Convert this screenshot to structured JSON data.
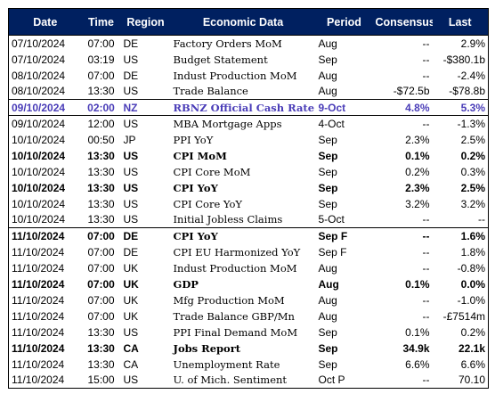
{
  "headers": {
    "date": "Date",
    "time": "Time",
    "region": "Region",
    "data": "Economic Data",
    "period": "Period",
    "consensus": "Consensus",
    "last": "Last"
  },
  "rows": [
    {
      "date": "07/10/2024",
      "time": "07:00",
      "region": "DE",
      "data": "Factory Orders MoM",
      "period": "Aug",
      "consensus": "--",
      "last": "2.9%"
    },
    {
      "date": "07/10/2024",
      "time": "03:19",
      "region": "US",
      "data": "Budget Statement",
      "period": "Sep",
      "consensus": "--",
      "last": "-$380.1b"
    },
    {
      "date": "08/10/2024",
      "time": "07:00",
      "region": "DE",
      "data": "Indust Production MoM",
      "period": "Aug",
      "consensus": "--",
      "last": "-2.4%"
    },
    {
      "date": "08/10/2024",
      "time": "13:30",
      "region": "US",
      "data": "Trade Balance",
      "period": "Aug",
      "consensus": "-$72.5b",
      "last": "-$78.8b"
    },
    {
      "date": "09/10/2024",
      "time": "02:00",
      "region": "NZ",
      "data": "RBNZ Official Cash Rate",
      "period": "9-Oct",
      "consensus": "4.8%",
      "last": "5.3%"
    },
    {
      "date": "09/10/2024",
      "time": "12:00",
      "region": "US",
      "data": "MBA Mortgage Apps",
      "period": "4-Oct",
      "consensus": "--",
      "last": "-1.3%"
    },
    {
      "date": "10/10/2024",
      "time": "00:50",
      "region": "JP",
      "data": "PPI YoY",
      "period": "Sep",
      "consensus": "2.3%",
      "last": "2.5%"
    },
    {
      "date": "10/10/2024",
      "time": "13:30",
      "region": "US",
      "data": "CPI MoM",
      "period": "Sep",
      "consensus": "0.1%",
      "last": "0.2%"
    },
    {
      "date": "10/10/2024",
      "time": "13:30",
      "region": "US",
      "data": "CPI Core MoM",
      "period": "Sep",
      "consensus": "0.2%",
      "last": "0.3%"
    },
    {
      "date": "10/10/2024",
      "time": "13:30",
      "region": "US",
      "data": "CPI YoY",
      "period": "Sep",
      "consensus": "2.3%",
      "last": "2.5%"
    },
    {
      "date": "10/10/2024",
      "time": "13:30",
      "region": "US",
      "data": "CPI Core YoY",
      "period": "Sep",
      "consensus": "3.2%",
      "last": "3.2%"
    },
    {
      "date": "10/10/2024",
      "time": "13:30",
      "region": "US",
      "data": "Initial Jobless Claims",
      "period": "5-Oct",
      "consensus": "--",
      "last": "--"
    },
    {
      "date": "11/10/2024",
      "time": "07:00",
      "region": "DE",
      "data": "CPI YoY",
      "period": "Sep F",
      "consensus": "--",
      "last": "1.6%"
    },
    {
      "date": "11/10/2024",
      "time": "07:00",
      "region": "DE",
      "data": "CPI EU Harmonized YoY",
      "period": "Sep F",
      "consensus": "--",
      "last": "1.8%"
    },
    {
      "date": "11/10/2024",
      "time": "07:00",
      "region": "UK",
      "data": "Indust Production MoM",
      "period": "Aug",
      "consensus": "--",
      "last": "-0.8%"
    },
    {
      "date": "11/10/2024",
      "time": "07:00",
      "region": "UK",
      "data": "GDP",
      "period": "Aug",
      "consensus": "0.1%",
      "last": "0.0%"
    },
    {
      "date": "11/10/2024",
      "time": "07:00",
      "region": "UK",
      "data": "Mfg Production MoM",
      "period": "Aug",
      "consensus": "--",
      "last": "-1.0%"
    },
    {
      "date": "11/10/2024",
      "time": "07:00",
      "region": "UK",
      "data": "Trade Balance GBP/Mn",
      "period": "Aug",
      "consensus": "--",
      "last": "-£7514m"
    },
    {
      "date": "11/10/2024",
      "time": "13:30",
      "region": "US",
      "data": "PPI Final Demand MoM",
      "period": "Sep",
      "consensus": "0.1%",
      "last": "0.2%"
    },
    {
      "date": "11/10/2024",
      "time": "13:30",
      "region": "CA",
      "data": "Jobs Report",
      "period": "Sep",
      "consensus": "34.9k",
      "last": "22.1k"
    },
    {
      "date": "11/10/2024",
      "time": "13:30",
      "region": "CA",
      "data": "Unemployment Rate",
      "period": "Sep",
      "consensus": "6.6%",
      "last": "6.6%"
    },
    {
      "date": "11/10/2024",
      "time": "15:00",
      "region": "US",
      "data": "U. of Mich. Sentiment",
      "period": "Oct P",
      "consensus": "--",
      "last": "70.10"
    }
  ],
  "styles": {
    "header_bg": "#002060",
    "highlight_text": "#4a3db8"
  }
}
